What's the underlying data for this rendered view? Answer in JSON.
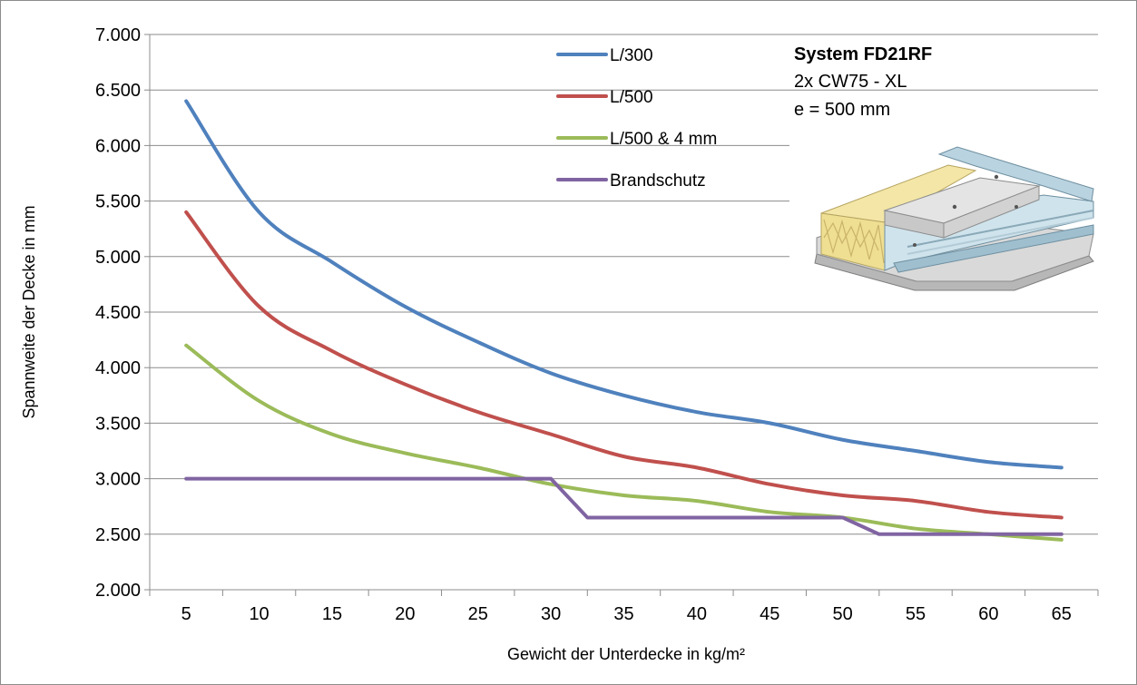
{
  "chart_data": {
    "type": "line",
    "title": "",
    "xlabel": "Gewicht der Unterdecke in kg/m²",
    "ylabel": "Spannweite der Decke in mm",
    "x": [
      5,
      10,
      15,
      20,
      25,
      30,
      35,
      40,
      45,
      50,
      55,
      60,
      65
    ],
    "x_tick_labels": [
      "5",
      "10",
      "15",
      "20",
      "25",
      "30",
      "35",
      "40",
      "45",
      "50",
      "55",
      "60",
      "65"
    ],
    "ylim": [
      2000,
      7000
    ],
    "y_ticks": [
      2000,
      2500,
      3000,
      3500,
      4000,
      4500,
      5000,
      5500,
      6000,
      6500,
      7000
    ],
    "y_tick_labels": [
      "2.000",
      "2.500",
      "3.000",
      "3.500",
      "4.000",
      "4.500",
      "5.000",
      "5.500",
      "6.000",
      "6.500",
      "7.000"
    ],
    "grid": true,
    "legend_position": "top-center",
    "series": [
      {
        "name": "L/300",
        "color": "#4f81bd",
        "smooth": true,
        "values": [
          6400,
          5400,
          4950,
          4550,
          4230,
          3950,
          3750,
          3600,
          3500,
          3350,
          3250,
          3150,
          3100
        ]
      },
      {
        "name": "L/500",
        "color": "#c0504d",
        "smooth": true,
        "values": [
          5400,
          4550,
          4150,
          3850,
          3600,
          3400,
          3200,
          3100,
          2950,
          2850,
          2800,
          2700,
          2650
        ]
      },
      {
        "name": "L/500 & 4 mm",
        "color": "#9bbb59",
        "smooth": true,
        "values": [
          4200,
          3700,
          3400,
          3230,
          3100,
          2950,
          2850,
          2800,
          2700,
          2650,
          2550,
          2500,
          2450
        ]
      },
      {
        "name": "Brandschutz",
        "color": "#8064a2",
        "smooth": false,
        "points": [
          [
            5,
            3000
          ],
          [
            30,
            3000
          ],
          [
            32.5,
            2650
          ],
          [
            50,
            2650
          ],
          [
            52.5,
            2500
          ],
          [
            65,
            2500
          ]
        ]
      }
    ]
  },
  "system_info": {
    "title": "System FD21RF",
    "line1": "2x CW75 - XL",
    "line2": "e = 500 mm"
  },
  "illustration": {
    "icon": "ceiling-construction-icon"
  }
}
